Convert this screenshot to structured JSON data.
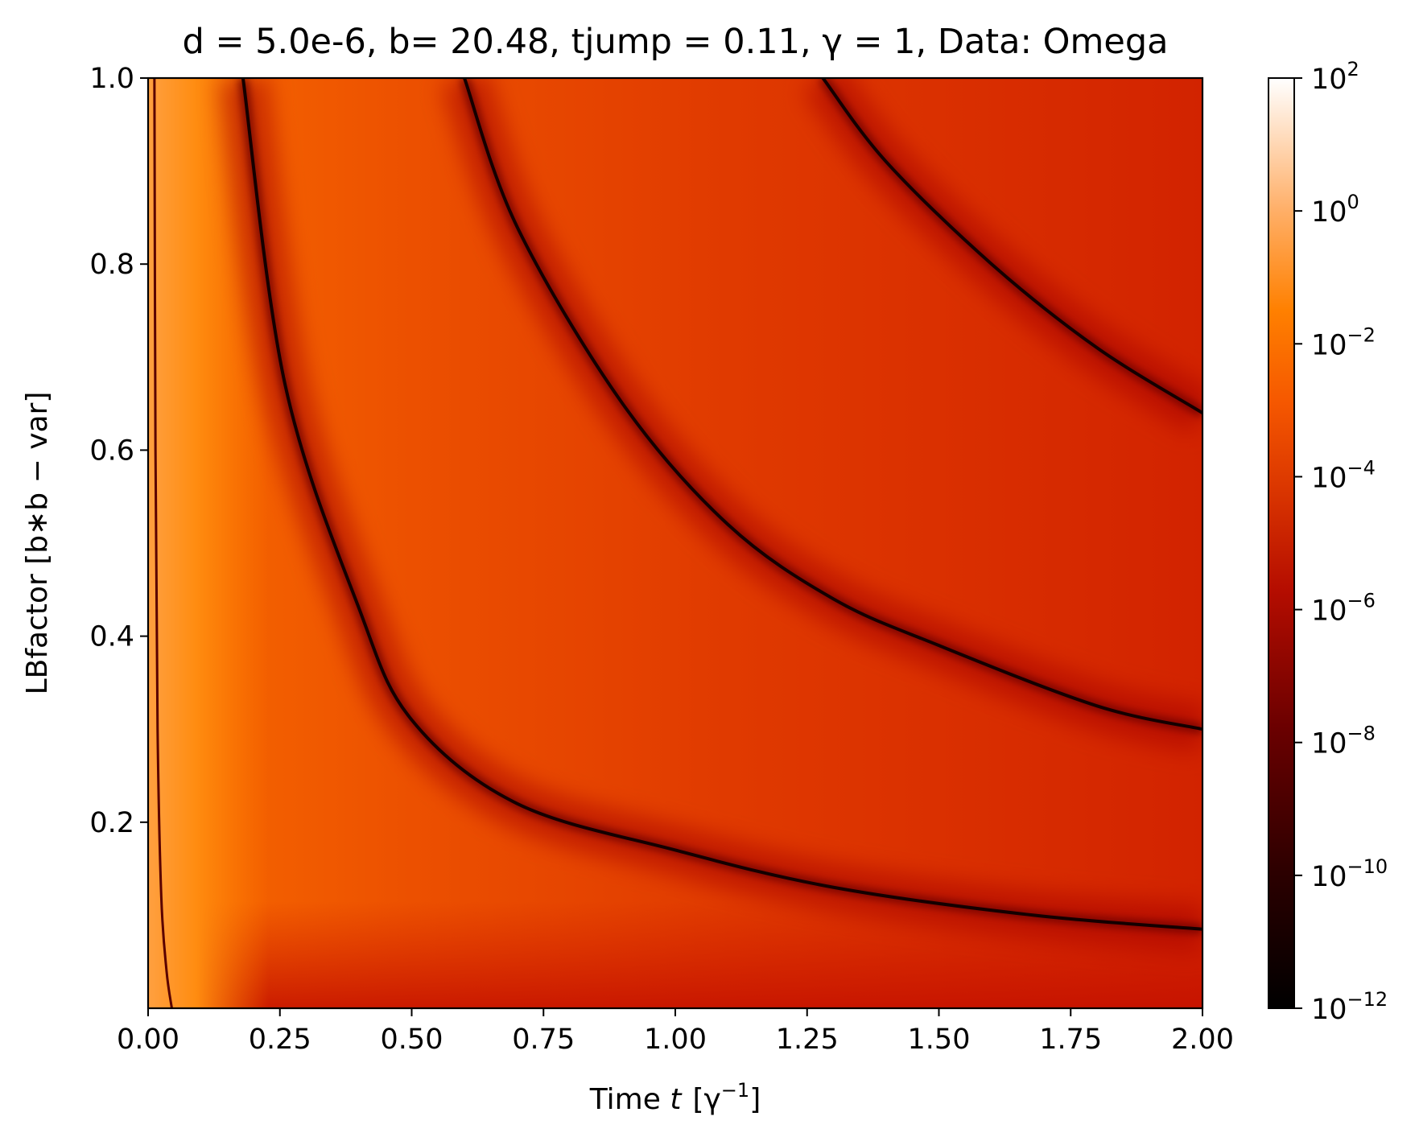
{
  "chart_data": {
    "type": "heatmap",
    "title": "d = 5.0e-6, b= 20.48, tjump = 0.11,  γ = 1, Data: Omega",
    "xlabel_text": "Time ",
    "xlabel_var": "t",
    "xlabel_unit_base": "[γ",
    "xlabel_unit_exp": "−1",
    "xlabel_unit_close": "]",
    "ylabel": "LBfactor [b∗b − var]",
    "xlim": [
      0.0,
      2.0
    ],
    "ylim": [
      0.0,
      1.0
    ],
    "x_ticks": [
      0.0,
      0.25,
      0.5,
      0.75,
      1.0,
      1.25,
      1.5,
      1.75,
      2.0
    ],
    "x_tick_labels": [
      "0.00",
      "0.25",
      "0.50",
      "0.75",
      "1.00",
      "1.25",
      "1.50",
      "1.75",
      "2.00"
    ],
    "y_ticks": [
      0.2,
      0.4,
      0.6,
      0.8,
      1.0
    ],
    "y_tick_labels": [
      "0.2",
      "0.4",
      "0.6",
      "0.8",
      "1.0"
    ],
    "colorbar": {
      "scale": "log",
      "colormap": "gist_heat",
      "range_exponents": [
        -12,
        2
      ],
      "tick_exponents": [
        2,
        0,
        -2,
        -4,
        -6,
        -8,
        -10,
        -12
      ],
      "tick_base": "10",
      "tick_exp_labels": [
        "2",
        "0",
        "−2",
        "−4",
        "−6",
        "−8",
        "−10",
        "−12"
      ]
    },
    "minima_curves": [
      {
        "points": [
          [
            0.18,
            1.0
          ],
          [
            0.26,
            0.67
          ],
          [
            0.4,
            0.43
          ],
          [
            0.5,
            0.31
          ],
          [
            0.7,
            0.22
          ],
          [
            1.0,
            0.17
          ],
          [
            1.3,
            0.13
          ],
          [
            1.68,
            0.1
          ],
          [
            2.0,
            0.085
          ]
        ]
      },
      {
        "points": [
          [
            0.6,
            1.0
          ],
          [
            0.7,
            0.84
          ],
          [
            0.9,
            0.65
          ],
          [
            1.1,
            0.52
          ],
          [
            1.3,
            0.44
          ],
          [
            1.5,
            0.39
          ],
          [
            1.8,
            0.325
          ],
          [
            2.0,
            0.3
          ]
        ]
      },
      {
        "points": [
          [
            1.28,
            1.0
          ],
          [
            1.4,
            0.91
          ],
          [
            1.6,
            0.8
          ],
          [
            1.8,
            0.71
          ],
          [
            2.0,
            0.64
          ]
        ]
      }
    ],
    "grid": false
  }
}
